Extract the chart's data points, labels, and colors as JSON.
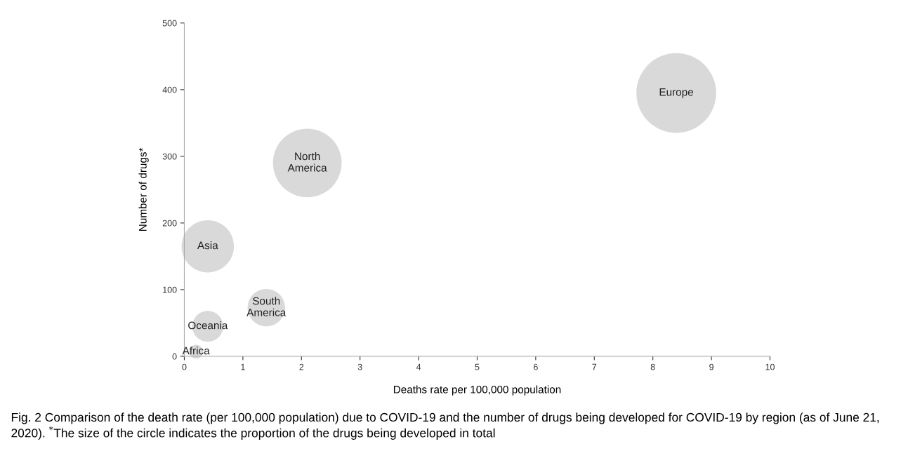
{
  "chart_data": {
    "type": "bubble",
    "xlabel": "Deaths rate per 100,000 population",
    "ylabel": "Number of drugs*",
    "series": [
      {
        "name": "Europe",
        "color": "#d9d9d9",
        "x": [
          8.4
        ],
        "values": [
          395
        ],
        "sizes": [
          1
        ]
      },
      {
        "name": "North America",
        "color": "#d9d9d9",
        "x": [
          2.1
        ],
        "values": [
          290
        ],
        "sizes": [
          0.74
        ]
      },
      {
        "name": "Asia",
        "color": "#d9d9d9",
        "x": [
          0.4
        ],
        "values": [
          165
        ],
        "sizes": [
          0.43
        ]
      },
      {
        "name": "South America",
        "color": "#d9d9d9",
        "x": [
          1.4
        ],
        "values": [
          73
        ],
        "sizes": [
          0.22
        ]
      },
      {
        "name": "Oceania",
        "color": "#d9d9d9",
        "x": [
          0.4
        ],
        "values": [
          45
        ],
        "sizes": [
          0.15
        ]
      },
      {
        "name": "Africa",
        "color": "#d9d9d9",
        "x": [
          0.2
        ],
        "values": [
          7
        ],
        "sizes": [
          0.03
        ]
      }
    ],
    "xlim": [
      0,
      10
    ],
    "xticks": [
      0,
      1,
      2,
      3,
      4,
      5,
      6,
      7,
      8,
      9,
      10
    ],
    "ylim": [
      0,
      500
    ],
    "yticks": [
      0,
      100,
      200,
      300,
      400,
      500
    ],
    "grid": false,
    "legend": false,
    "annotations": [
      "Fig. 2 Comparison of the death rate (per 100,000 population) due to COVID-19 and the number of drugs being developed for COVID-19 by region (as of June 21, 2020). $^{*}$The size of the circle indicates the proportion of the drugs being developed in total"
    ]
  }
}
